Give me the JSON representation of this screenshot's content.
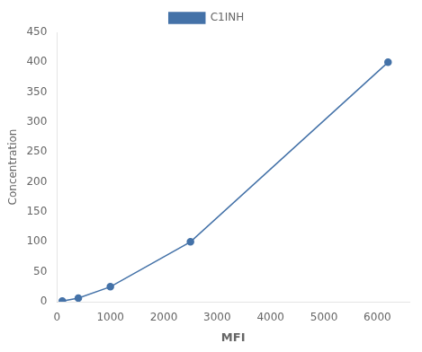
{
  "chart_data": {
    "type": "line",
    "x": [
      100,
      400,
      1000,
      2500,
      6200
    ],
    "series": [
      {
        "name": "C1INH",
        "color": "#4472a8",
        "marker": "circle",
        "values": [
          1,
          6,
          25,
          100,
          400
        ]
      }
    ],
    "xlabel": "MFI",
    "ylabel": "Concentration",
    "xlim": [
      0,
      6600
    ],
    "ylim": [
      0,
      450
    ],
    "xticks": [
      0,
      1000,
      2000,
      3000,
      4000,
      5000,
      6000
    ],
    "yticks": [
      0,
      50,
      100,
      150,
      200,
      250,
      300,
      350,
      400,
      450
    ],
    "grid": false,
    "legend": "top"
  }
}
